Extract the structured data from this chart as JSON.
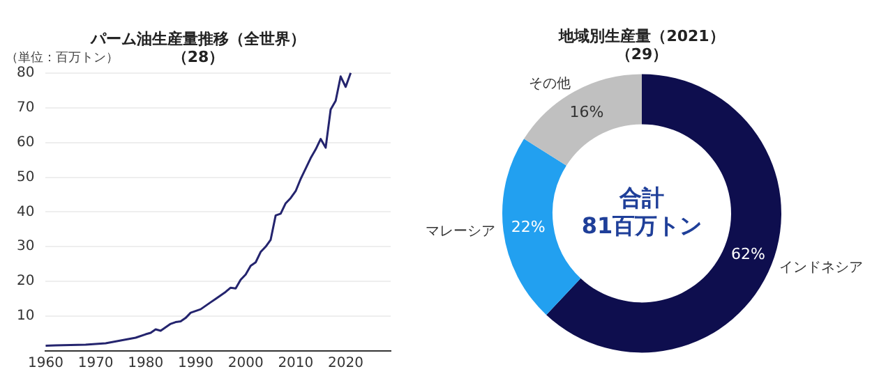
{
  "chart_data": [
    {
      "type": "line",
      "title": "パーム油生産量推移（全世界）（28）",
      "annotations": [
        "（単位：百万トン）"
      ],
      "x": [
        1960,
        1962,
        1965,
        1968,
        1970,
        1972,
        1975,
        1978,
        1980,
        1981,
        1982,
        1983,
        1984,
        1985,
        1986,
        1987,
        1988,
        1989,
        1990,
        1991,
        1992,
        1993,
        1994,
        1995,
        1996,
        1997,
        1998,
        1999,
        2000,
        2001,
        2002,
        2003,
        2004,
        2005,
        2006,
        2007,
        2008,
        2009,
        2010,
        2011,
        2012,
        2013,
        2014,
        2015,
        2016,
        2017,
        2018,
        2019,
        2020,
        2021
      ],
      "values": [
        1.5,
        1.6,
        1.7,
        1.8,
        2.0,
        2.2,
        3.0,
        3.8,
        4.8,
        5.2,
        6.2,
        5.8,
        6.8,
        7.8,
        8.3,
        8.5,
        9.5,
        11,
        11.5,
        12,
        13,
        14,
        15,
        16,
        17,
        18.2,
        18,
        20.5,
        22,
        24.5,
        25.5,
        28.5,
        30,
        32,
        39,
        39.5,
        42.5,
        44,
        46,
        49.5,
        52.5,
        55.5,
        58,
        61,
        58.5,
        69.5,
        72,
        79,
        76,
        80
      ],
      "color": "#24246e",
      "marker": "none",
      "grid": "y",
      "xlim": [
        1960,
        2029
      ],
      "xticks": [
        1960,
        1970,
        1980,
        1990,
        2000,
        2010,
        2020
      ],
      "ylim": [
        0,
        80
      ],
      "yticks": [
        10,
        20,
        30,
        40,
        50,
        60,
        70,
        80
      ]
    },
    {
      "type": "donut",
      "title": "地域別生産量（2021）（29）",
      "annotations": [
        "合計\n81百万トン"
      ],
      "categories": [
        "インドネシア",
        "マレーシア",
        "その他"
      ],
      "values": [
        62,
        22,
        16
      ],
      "colors": [
        "#0e0e4e",
        "#22a0f0",
        "#c0c0c0"
      ],
      "value_labels": [
        "62%",
        "22%",
        "16%"
      ]
    }
  ]
}
